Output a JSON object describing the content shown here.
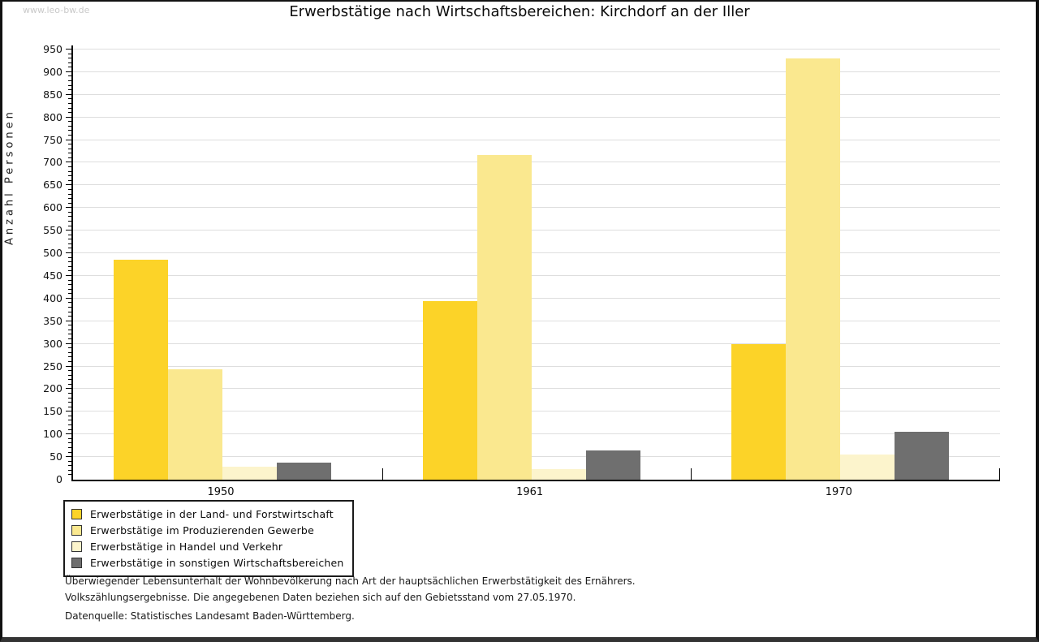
{
  "watermark": "www.leo-bw.de",
  "title": "Erwerbstätige nach Wirtschaftsbereichen: Kirchdorf an der Iller",
  "footnotes": {
    "line1": "Überwiegender Lebensunterhalt der Wohnbevölkerung nach Art der hauptsächlichen Erwerbstätigkeit des Ernährers.",
    "line2": "Volkszählungsergebnisse. Die angegebenen Daten beziehen sich auf den Gebietsstand vom 27.05.1970.",
    "source": "Datenquelle: Statistisches Landesamt Baden-Württemberg."
  },
  "chart_data": {
    "type": "bar",
    "title": "Erwerbstätige nach Wirtschaftsbereichen: Kirchdorf an der Iller",
    "xlabel": "",
    "ylabel": "Anzahl Personen",
    "categories": [
      "1950",
      "1961",
      "1970"
    ],
    "series": [
      {
        "name": "Erwerbstätige in der Land- und Forstwirtschaft",
        "color": "#FCD328",
        "values": [
          485,
          395,
          300
        ]
      },
      {
        "name": "Erwerbstätige im Produzierenden Gewerbe",
        "color": "#FAE88F",
        "values": [
          244,
          717,
          931
        ]
      },
      {
        "name": "Erwerbstätige in Handel und Verkehr",
        "color": "#FCF4CC",
        "values": [
          29,
          23,
          55
        ]
      },
      {
        "name": "Erwerbstätige in sonstigen Wirtschaftsbereichen",
        "color": "#6F6F6F",
        "values": [
          37,
          64,
          105
        ]
      }
    ],
    "ylim": [
      0,
      950
    ],
    "ytick_step": 50,
    "minor_tick_step": 10,
    "grid": "horizontal",
    "grid_color": "#DEDEDE",
    "axis_color": "#000000",
    "legend_position": "bottom-left"
  }
}
